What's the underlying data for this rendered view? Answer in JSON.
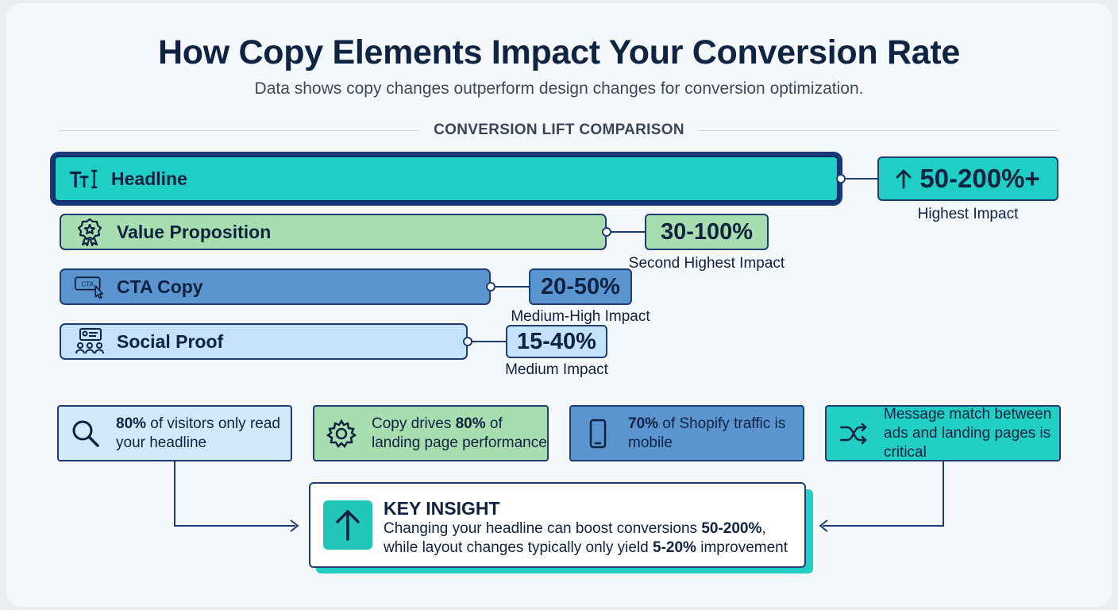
{
  "header": {
    "title": "How Copy Elements Impact Your Conversion Rate",
    "subtitle": "Data shows copy changes outperform design changes for conversion optimization."
  },
  "section_label": "CONVERSION LIFT COMPARISON",
  "colors": {
    "headline": "#1fcfc6",
    "value_proposition": "#a8ddb0",
    "cta_copy": "#5b95d0",
    "social_proof": "#c4e2fb",
    "outline": "#1f3d72",
    "accent": "#22c6b8"
  },
  "chart_data": {
    "type": "bar",
    "categories": [
      "Headline",
      "Value Proposition",
      "CTA Copy",
      "Social Proof"
    ],
    "series": [
      {
        "values": [
          [
            50,
            200
          ],
          [
            30,
            100
          ],
          [
            20,
            50
          ],
          [
            15,
            40
          ]
        ]
      }
    ],
    "value_labels": [
      "50-200%+",
      "30-100%",
      "20-50%",
      "15-40%"
    ],
    "impact_labels": [
      "Highest Impact",
      "Second Highest Impact",
      "Medium-High Impact",
      "Medium Impact"
    ],
    "icons": [
      "text-size-icon",
      "award-icon",
      "cta-click-icon",
      "social-proof-icon"
    ],
    "title": "",
    "xlabel": "",
    "ylabel": ""
  },
  "stats": [
    {
      "icon": "search-icon",
      "bold": "80%",
      "text_before": "",
      "text_after": " of visitors only read your headline"
    },
    {
      "icon": "gear-icon",
      "bold": "80%",
      "text_before": "Copy drives ",
      "text_after": " of landing page performance"
    },
    {
      "icon": "mobile-icon",
      "bold": "70%",
      "text_before": "",
      "text_after": " of Shopify traffic is mobile"
    },
    {
      "icon": "shuffle-icon",
      "bold": "",
      "text_before": "Message match between ads and landing pages is critical",
      "text_after": ""
    }
  ],
  "insight": {
    "icon": "arrow-up-icon",
    "title": "KEY INSIGHT",
    "line1_before": "Changing your headline can boost conversions ",
    "line1_bold": "50-200%",
    "line1_after": ",",
    "line2_before": "while layout changes typically only yield ",
    "line2_bold": "5-20%",
    "line2_after": " improvement"
  }
}
